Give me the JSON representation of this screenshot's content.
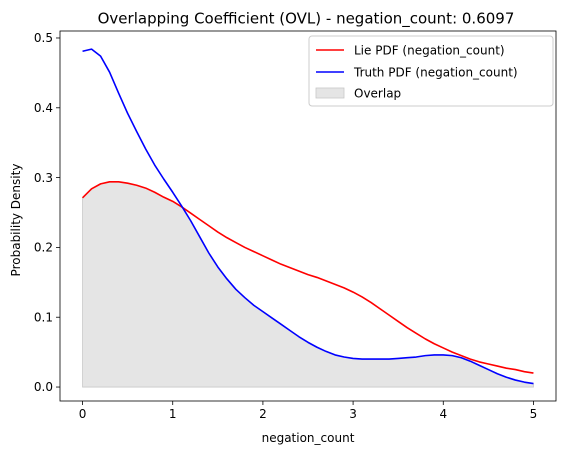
{
  "chart_data": {
    "type": "line",
    "title": "Overlapping Coefficient (OVL) - negation_count: 0.6097",
    "xlabel": "negation_count",
    "ylabel": "Probability Density",
    "xlim": [
      -0.25,
      5.25
    ],
    "ylim": [
      -0.02,
      0.51
    ],
    "xticks": [
      0,
      1,
      2,
      3,
      4,
      5
    ],
    "yticks": [
      0.0,
      0.1,
      0.2,
      0.3,
      0.4,
      0.5
    ],
    "grid": false,
    "legend_position": "top-right",
    "x": [
      0,
      0.1,
      0.2,
      0.3,
      0.4,
      0.5,
      0.6,
      0.7,
      0.8,
      0.9,
      1.0,
      1.1,
      1.2,
      1.3,
      1.4,
      1.5,
      1.6,
      1.7,
      1.8,
      1.9,
      2.0,
      2.1,
      2.2,
      2.3,
      2.4,
      2.5,
      2.6,
      2.7,
      2.8,
      2.9,
      3.0,
      3.1,
      3.2,
      3.3,
      3.4,
      3.5,
      3.6,
      3.7,
      3.8,
      3.9,
      4.0,
      4.1,
      4.2,
      4.3,
      4.4,
      4.5,
      4.6,
      4.7,
      4.8,
      4.9,
      5.0
    ],
    "series": [
      {
        "name": "Lie PDF (negation_count)",
        "color": "#ff0000",
        "values": [
          0.271,
          0.284,
          0.291,
          0.294,
          0.294,
          0.292,
          0.289,
          0.285,
          0.279,
          0.272,
          0.266,
          0.258,
          0.249,
          0.24,
          0.231,
          0.222,
          0.214,
          0.207,
          0.2,
          0.194,
          0.188,
          0.182,
          0.176,
          0.171,
          0.166,
          0.161,
          0.157,
          0.152,
          0.147,
          0.142,
          0.136,
          0.129,
          0.121,
          0.112,
          0.103,
          0.094,
          0.085,
          0.077,
          0.069,
          0.062,
          0.056,
          0.05,
          0.045,
          0.04,
          0.036,
          0.033,
          0.03,
          0.027,
          0.025,
          0.022,
          0.02
        ]
      },
      {
        "name": "Truth PDF (negation_count)",
        "color": "#0000ff",
        "values": [
          0.481,
          0.484,
          0.474,
          0.451,
          0.421,
          0.392,
          0.366,
          0.341,
          0.318,
          0.298,
          0.279,
          0.259,
          0.238,
          0.215,
          0.192,
          0.172,
          0.155,
          0.14,
          0.128,
          0.117,
          0.108,
          0.099,
          0.09,
          0.081,
          0.072,
          0.064,
          0.057,
          0.051,
          0.046,
          0.043,
          0.041,
          0.04,
          0.04,
          0.04,
          0.04,
          0.041,
          0.042,
          0.043,
          0.045,
          0.046,
          0.046,
          0.045,
          0.042,
          0.037,
          0.031,
          0.025,
          0.019,
          0.014,
          0.01,
          0.007,
          0.005
        ]
      }
    ],
    "overlap": {
      "name": "Overlap",
      "color": "#d3d3d3",
      "opacity": 0.6
    }
  }
}
